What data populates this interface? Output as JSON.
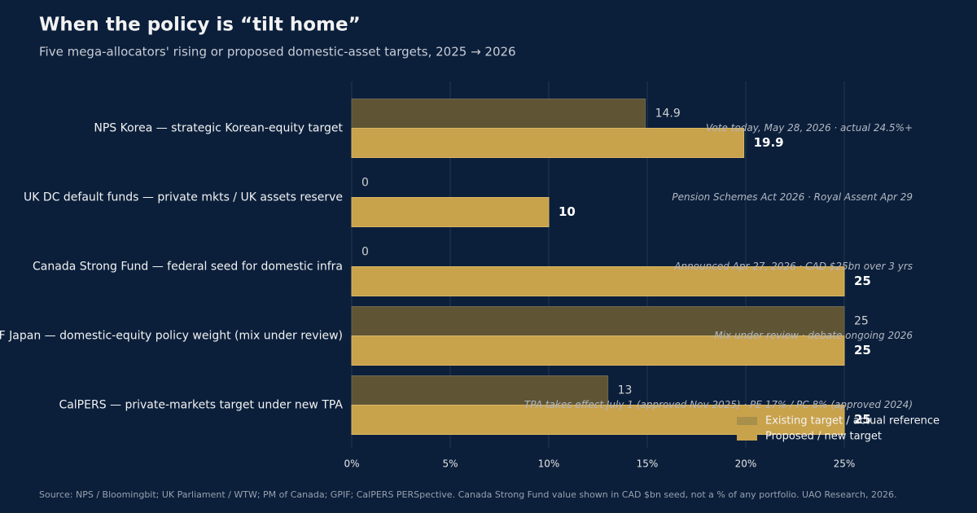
{
  "chart_data": {
    "type": "hbar",
    "title": "When the policy is “tilt home”",
    "subtitle": "Five mega-allocators' rising or proposed domestic-asset targets, 2025 → 2026",
    "source": "Source: NPS / Bloomingbit; UK Parliament / WTW; PM of Canada; GPIF; CalPERS PERSpective. Canada Strong Fund value shown in CAD $bn seed, not a % of any portfolio. UAO Research, 2026.",
    "categories": [
      "NPS Korea — strategic Korean-equity target",
      "UK DC default funds — private mkts / UK assets reserve",
      "Canada Strong Fund — federal seed for domestic infra",
      "GPIF Japan — domestic-equity policy weight (mix under review)",
      "CalPERS — private-markets target under new TPA"
    ],
    "annotations": [
      "Vote today, May 28, 2026 · actual 24.5%+",
      "Pension Schemes Act 2026 · Royal Assent Apr 29",
      "Announced Apr 27, 2026 · CAD $25bn over 3 yrs",
      "Mix under review · debate ongoing 2026",
      "TPA takes effect July 1 (approved Nov 2025) · PE 17% / PC 8% (approved 2024)"
    ],
    "series": [
      {
        "name": "Existing target / actual reference",
        "color": "#5f5535",
        "values": [
          14.9,
          0,
          0,
          25,
          13
        ]
      },
      {
        "name": "Proposed / new target",
        "color": "#c9a24c",
        "values": [
          19.9,
          10,
          25,
          25,
          25
        ]
      }
    ],
    "xlim": [
      0,
      30
    ],
    "xticks": [
      {
        "value": 0,
        "label": "0%"
      },
      {
        "value": 5,
        "label": "5%"
      },
      {
        "value": 10,
        "label": "10%"
      },
      {
        "value": 15,
        "label": "15%"
      },
      {
        "value": 20,
        "label": "20%"
      },
      {
        "value": 25,
        "label": "25%"
      }
    ],
    "grid": true,
    "legend": "lower right"
  }
}
